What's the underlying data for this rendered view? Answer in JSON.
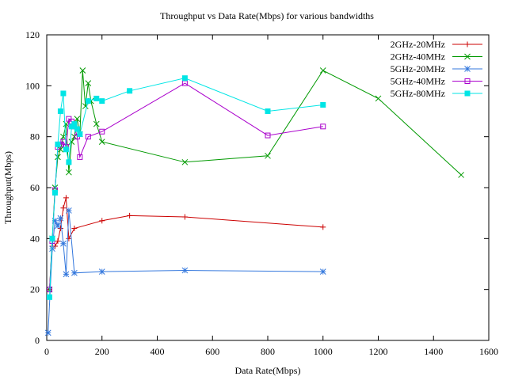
{
  "chart_data": {
    "type": "line",
    "title": "Throughput vs Data Rate(Mbps) for various bandwidths",
    "xlabel": "Data Rate(Mbps)",
    "ylabel": "Throughput(Mbps)",
    "xlim": [
      0,
      1600
    ],
    "ylim": [
      0,
      120
    ],
    "xticks": [
      "0",
      "200",
      "400",
      "600",
      "800",
      "1000",
      "1200",
      "1400",
      "1600"
    ],
    "yticks": [
      "0",
      "20",
      "40",
      "60",
      "80",
      "100",
      "120"
    ],
    "grid": false,
    "legend_position": "top-right",
    "series": [
      {
        "name": "2GHz-20MHz",
        "color": "#cc0000",
        "marker": "plus",
        "x": [
          10,
          20,
          30,
          40,
          50,
          60,
          70,
          80,
          100,
          200,
          300,
          500,
          1000
        ],
        "y": [
          20,
          37,
          37,
          39,
          44,
          52,
          56,
          40,
          44,
          47,
          49,
          48.5,
          44.5
        ]
      },
      {
        "name": "2GHz-40MHz",
        "color": "#009900",
        "marker": "x",
        "x": [
          10,
          20,
          30,
          40,
          50,
          60,
          70,
          80,
          90,
          100,
          110,
          120,
          130,
          140,
          150,
          160,
          180,
          200,
          500,
          800,
          1000,
          1200,
          1500
        ],
        "y": [
          20,
          40,
          60,
          72,
          75,
          80,
          85,
          66,
          78,
          80,
          87,
          81,
          106,
          92,
          101,
          94,
          85,
          78,
          70,
          72.5,
          106,
          95,
          65
        ]
      },
      {
        "name": "5GHz-20MHz",
        "color": "#3377dd",
        "marker": "star",
        "x": [
          5,
          20,
          30,
          40,
          50,
          60,
          70,
          80,
          100,
          200,
          500,
          1000
        ],
        "y": [
          3,
          36,
          47,
          45,
          48,
          38,
          26,
          51,
          26.5,
          27,
          27.5,
          27
        ]
      },
      {
        "name": "5GHz-40MHz",
        "color": "#aa00cc",
        "marker": "square-open",
        "x": [
          10,
          20,
          30,
          40,
          50,
          60,
          70,
          80,
          90,
          100,
          110,
          120,
          150,
          200,
          500,
          800,
          1000
        ],
        "y": [
          20,
          39,
          59,
          76,
          77,
          78,
          76,
          87,
          86,
          84,
          80,
          72,
          80,
          82,
          101,
          80.5,
          84
        ]
      },
      {
        "name": "5GHz-80MHz",
        "color": "#00e5e5",
        "marker": "square-filled",
        "x": [
          10,
          20,
          30,
          40,
          50,
          60,
          70,
          80,
          90,
          100,
          110,
          120,
          150,
          180,
          200,
          300,
          500,
          800,
          1000
        ],
        "y": [
          17,
          40,
          58,
          77,
          90,
          97,
          75,
          70,
          84,
          85,
          83,
          81,
          94,
          95,
          94,
          98,
          103,
          90,
          92.5
        ]
      }
    ]
  }
}
